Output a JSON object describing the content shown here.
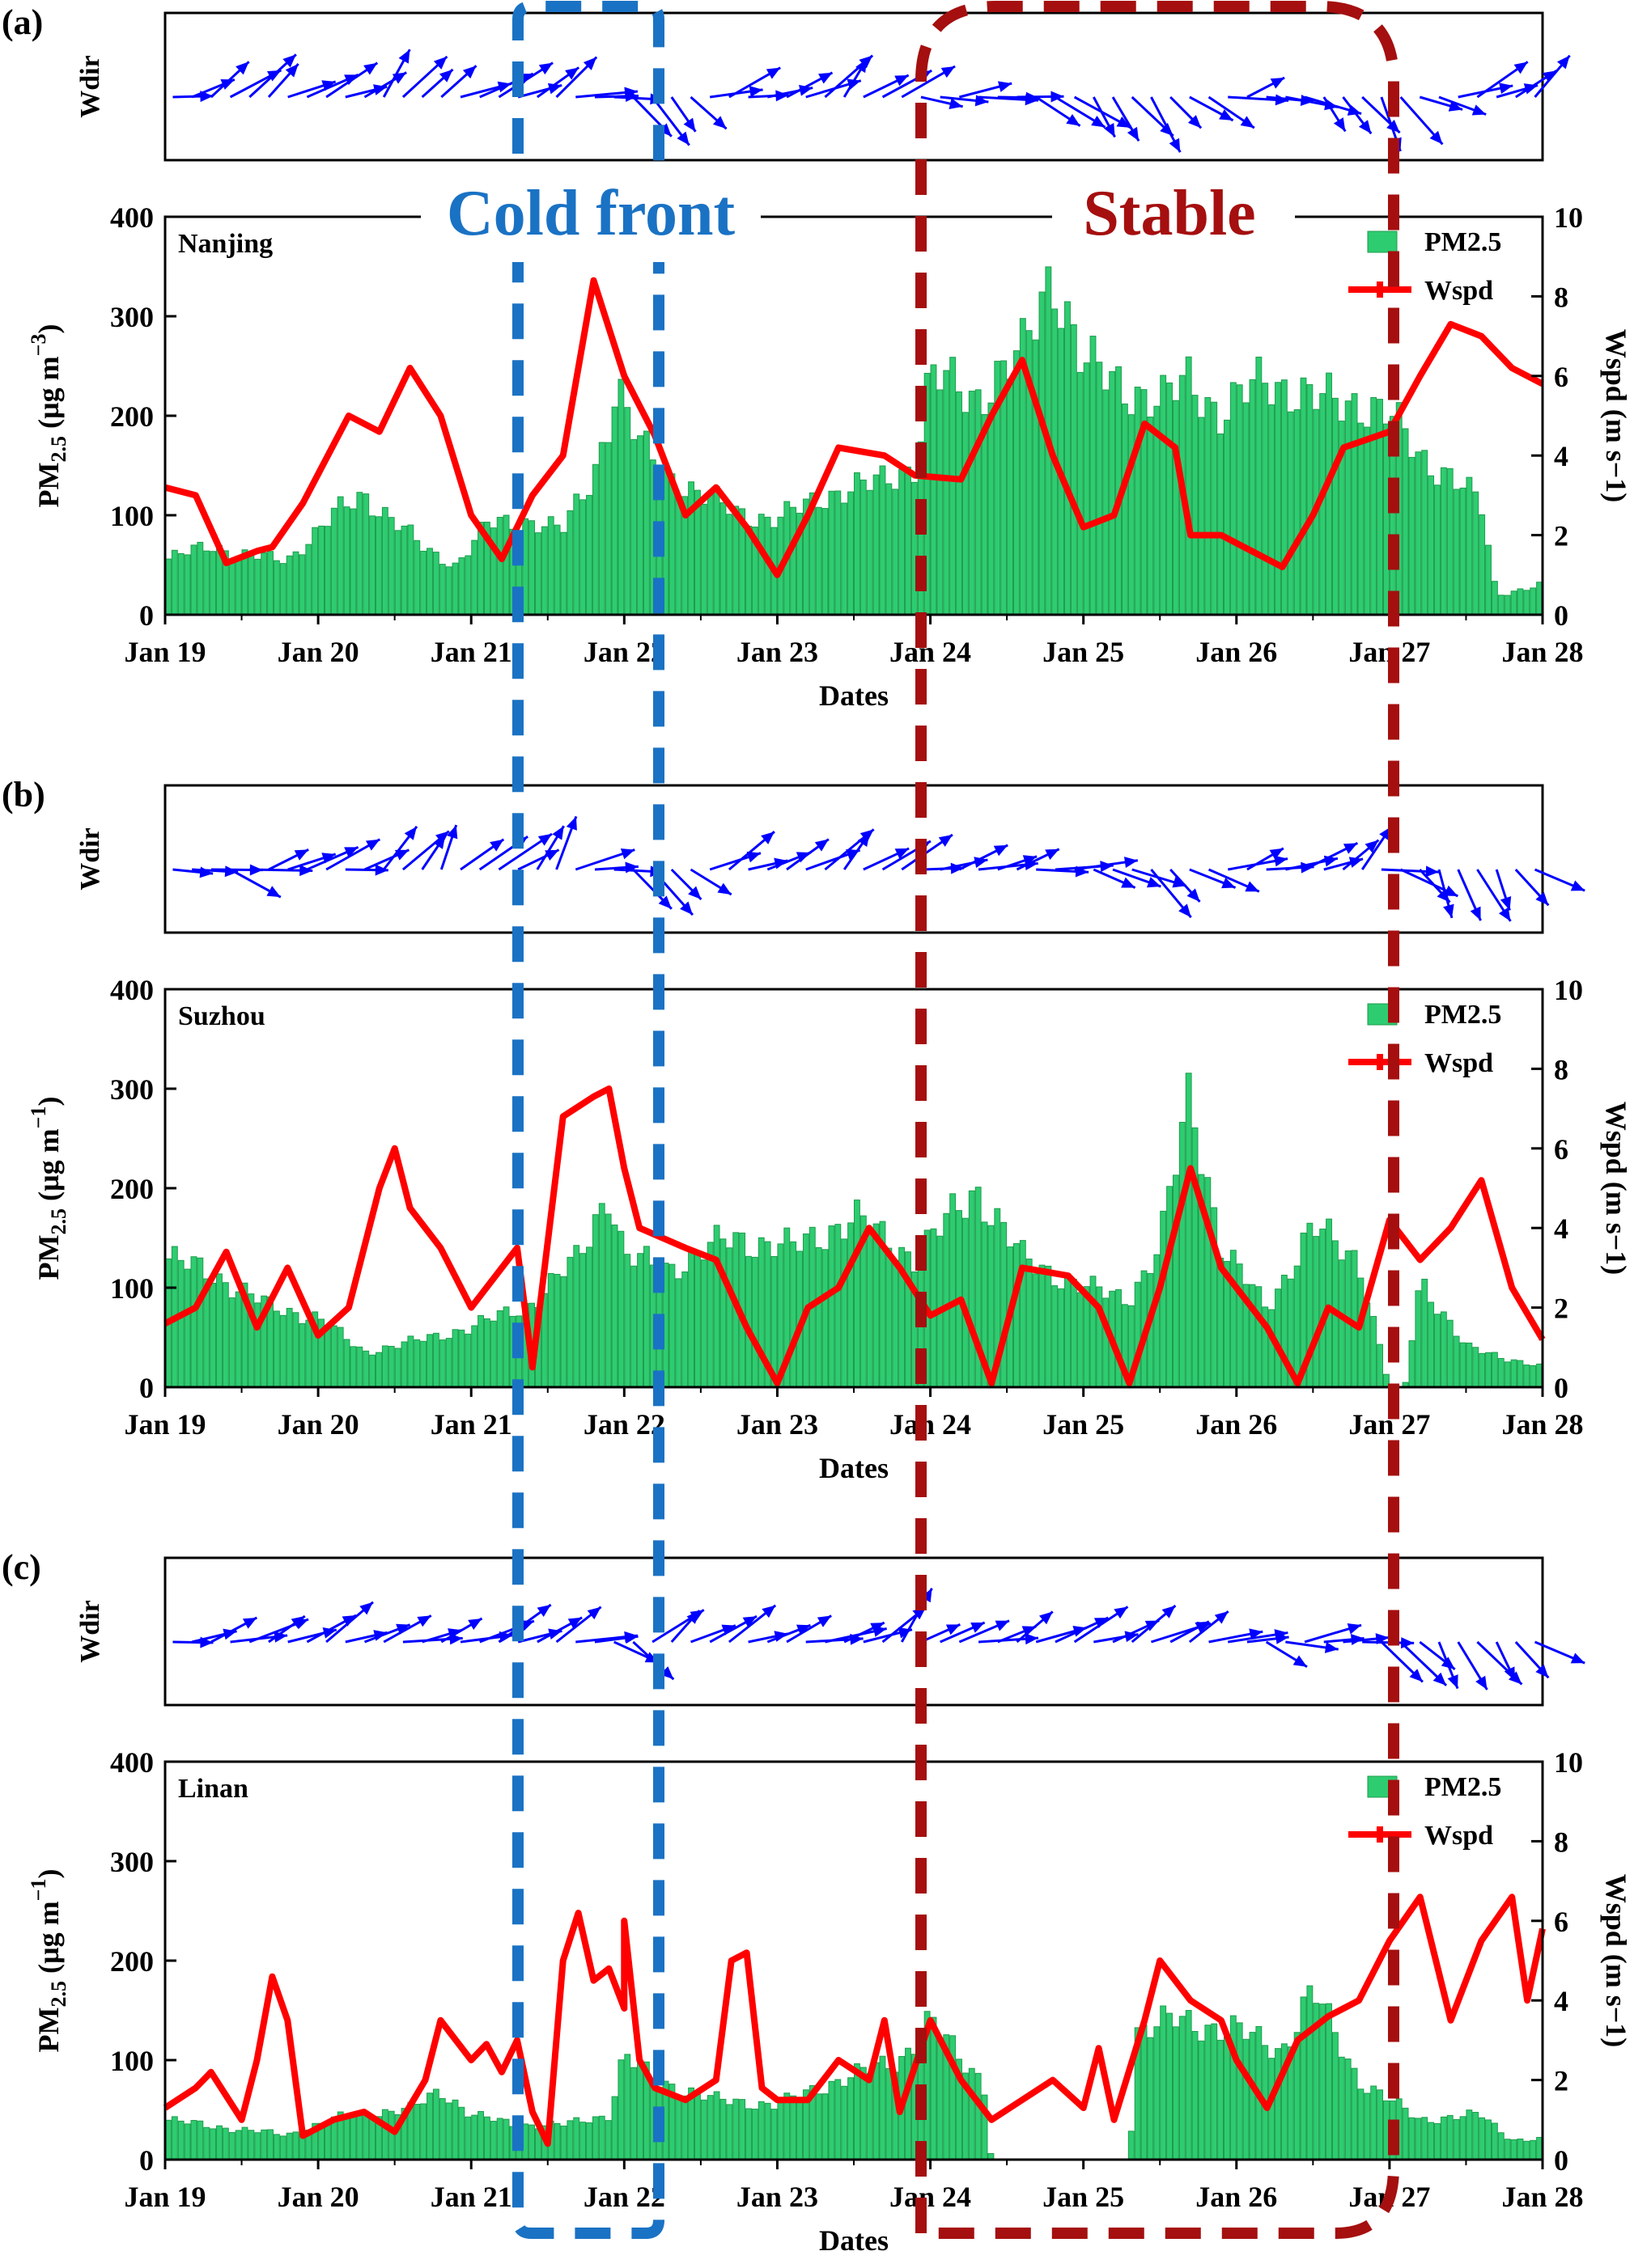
{
  "figure": {
    "overlay_labels": {
      "cold_front": "Cold front",
      "stable": "Stable"
    },
    "colors": {
      "pm25_bar": "#2ecc71",
      "pm25_bar_edge": "#1e9c4c",
      "wspd_line": "#ff0000",
      "wind_arrow": "#0000ff",
      "cold_front_box": "#1a72c4",
      "stable_box": "#a50f0f"
    }
  },
  "chart_data": [
    {
      "panel_label": "(a)",
      "city": "Nanjing",
      "type": "bar",
      "wdir_label": "Wdir",
      "xlabel": "Dates",
      "ylabel": "PM2.5 (µg m−3)",
      "ylabel_main": "PM",
      "ylabel_sub": "2.5",
      "ylabel_unit": " (µg m",
      "ylabel_exp": "−3",
      "ylabel_close": ")",
      "y2label": "Wspd (m s−1)",
      "ylim": [
        0,
        400
      ],
      "y2lim": [
        0,
        10
      ],
      "yticks": [
        "0",
        "100",
        "200",
        "300",
        "400"
      ],
      "y2ticks": [
        "0",
        "2",
        "4",
        "6",
        "8",
        "10"
      ],
      "xticks": [
        "Jan 19",
        "Jan 20",
        "Jan 21",
        "Jan 22",
        "Jan 23",
        "Jan 24",
        "Jan 25",
        "Jan 26",
        "Jan 27",
        "Jan 28"
      ],
      "legend": [
        "PM2.5",
        "Wspd"
      ],
      "pm25_knots": [
        [
          0,
          55
        ],
        [
          0.3,
          70
        ],
        [
          0.5,
          60
        ],
        [
          0.8,
          55
        ],
        [
          1.1,
          100
        ],
        [
          1.3,
          120
        ],
        [
          1.5,
          95
        ],
        [
          1.7,
          65
        ],
        [
          1.9,
          50
        ],
        [
          2.1,
          90
        ],
        [
          2.4,
          95
        ],
        [
          2.6,
          85
        ],
        [
          2.8,
          140
        ],
        [
          2.95,
          230
        ],
        [
          3.1,
          170
        ],
        [
          3.3,
          140
        ],
        [
          3.5,
          120
        ],
        [
          3.8,
          100
        ],
        [
          4.0,
          95
        ],
        [
          4.3,
          120
        ],
        [
          4.6,
          130
        ],
        [
          4.9,
          150
        ],
        [
          5.0,
          240
        ],
        [
          5.3,
          220
        ],
        [
          5.6,
          260
        ],
        [
          5.8,
          350
        ],
        [
          6.0,
          250
        ],
        [
          6.3,
          230
        ],
        [
          6.5,
          210
        ],
        [
          6.7,
          240
        ],
        [
          6.9,
          200
        ],
        [
          7.2,
          240
        ],
        [
          7.5,
          215
        ],
        [
          7.8,
          215
        ],
        [
          8.0,
          200
        ],
        [
          8.2,
          160
        ],
        [
          8.4,
          140
        ],
        [
          8.6,
          110
        ],
        [
          8.7,
          20
        ],
        [
          9.0,
          30
        ]
      ],
      "wspd_knots": [
        [
          0,
          3.2
        ],
        [
          0.2,
          3.0
        ],
        [
          0.4,
          1.3
        ],
        [
          0.6,
          1.6
        ],
        [
          0.7,
          1.7
        ],
        [
          0.9,
          2.8
        ],
        [
          1.2,
          5.0
        ],
        [
          1.4,
          4.6
        ],
        [
          1.6,
          6.2
        ],
        [
          1.8,
          5.0
        ],
        [
          2.0,
          2.5
        ],
        [
          2.2,
          1.4
        ],
        [
          2.4,
          3.0
        ],
        [
          2.6,
          4.0
        ],
        [
          2.8,
          8.4
        ],
        [
          3.0,
          6.0
        ],
        [
          3.2,
          4.5
        ],
        [
          3.4,
          2.5
        ],
        [
          3.6,
          3.2
        ],
        [
          3.8,
          2.2
        ],
        [
          4.0,
          1.0
        ],
        [
          4.2,
          2.5
        ],
        [
          4.4,
          4.2
        ],
        [
          4.7,
          4.0
        ],
        [
          4.9,
          3.5
        ],
        [
          5.2,
          3.4
        ],
        [
          5.4,
          5.0
        ],
        [
          5.6,
          6.4
        ],
        [
          5.8,
          4.0
        ],
        [
          6.0,
          2.2
        ],
        [
          6.2,
          2.5
        ],
        [
          6.4,
          4.8
        ],
        [
          6.6,
          4.2
        ],
        [
          6.7,
          2.0
        ],
        [
          6.9,
          2.0
        ],
        [
          7.1,
          1.6
        ],
        [
          7.3,
          1.2
        ],
        [
          7.5,
          2.5
        ],
        [
          7.7,
          4.2
        ],
        [
          8.0,
          4.6
        ],
        [
          8.2,
          6.0
        ],
        [
          8.4,
          7.3
        ],
        [
          8.6,
          7.0
        ],
        [
          8.8,
          6.2
        ],
        [
          9.0,
          5.8
        ]
      ],
      "wdir_knots": [
        [
          0,
          10
        ],
        [
          0.5,
          45
        ],
        [
          1.0,
          20
        ],
        [
          1.3,
          30
        ],
        [
          1.5,
          60
        ],
        [
          1.8,
          30
        ],
        [
          2.2,
          20
        ],
        [
          2.5,
          40
        ],
        [
          2.9,
          -10
        ],
        [
          3.1,
          -40
        ],
        [
          3.3,
          -70
        ],
        [
          3.6,
          20
        ],
        [
          4.0,
          10
        ],
        [
          4.4,
          50
        ],
        [
          4.8,
          20
        ],
        [
          5.0,
          -10
        ],
        [
          5.3,
          10
        ],
        [
          5.8,
          -30
        ],
        [
          6.2,
          -60
        ],
        [
          6.7,
          -40
        ],
        [
          7.1,
          20
        ],
        [
          7.6,
          -50
        ],
        [
          8.0,
          -60
        ],
        [
          8.5,
          20
        ],
        [
          9.0,
          40
        ]
      ]
    },
    {
      "panel_label": "(b)",
      "city": "Suzhou",
      "type": "bar",
      "wdir_label": "Wdir",
      "xlabel": "Dates",
      "ylabel": "PM2.5 (µg m−1)",
      "ylabel_main": "PM",
      "ylabel_sub": "2.5",
      "ylabel_unit": " (µg m",
      "ylabel_exp": "−1",
      "ylabel_close": ")",
      "y2label": "Wspd (m s−1)",
      "ylim": [
        0,
        400
      ],
      "y2lim": [
        0,
        10
      ],
      "yticks": [
        "0",
        "100",
        "200",
        "300",
        "400"
      ],
      "y2ticks": [
        "0",
        "2",
        "4",
        "6",
        "8",
        "10"
      ],
      "xticks": [
        "Jan 19",
        "Jan 20",
        "Jan 21",
        "Jan 22",
        "Jan 23",
        "Jan 24",
        "Jan 25",
        "Jan 26",
        "Jan 27",
        "Jan 28"
      ],
      "legend": [
        "PM2.5",
        "Wspd"
      ],
      "pm25_knots": [
        [
          0,
          130
        ],
        [
          0.3,
          115
        ],
        [
          0.7,
          80
        ],
        [
          1.0,
          70
        ],
        [
          1.3,
          35
        ],
        [
          1.6,
          45
        ],
        [
          2.0,
          60
        ],
        [
          2.4,
          85
        ],
        [
          2.7,
          130
        ],
        [
          2.9,
          200
        ],
        [
          3.0,
          130
        ],
        [
          3.3,
          120
        ],
        [
          3.7,
          150
        ],
        [
          4.1,
          140
        ],
        [
          4.5,
          170
        ],
        [
          4.9,
          130
        ],
        [
          5.3,
          200
        ],
        [
          5.6,
          130
        ],
        [
          6.0,
          100
        ],
        [
          6.3,
          90
        ],
        [
          6.5,
          140
        ],
        [
          6.7,
          300
        ],
        [
          6.9,
          140
        ],
        [
          7.2,
          80
        ],
        [
          7.5,
          160
        ],
        [
          7.8,
          130
        ],
        [
          8.0,
          0
        ],
        [
          8.1,
          0
        ],
        [
          8.2,
          110
        ],
        [
          8.5,
          40
        ],
        [
          9.0,
          20
        ]
      ],
      "wspd_knots": [
        [
          0,
          1.6
        ],
        [
          0.2,
          2.0
        ],
        [
          0.4,
          3.4
        ],
        [
          0.6,
          1.5
        ],
        [
          0.8,
          3.0
        ],
        [
          1.0,
          1.3
        ],
        [
          1.2,
          2.0
        ],
        [
          1.4,
          5.0
        ],
        [
          1.5,
          6.0
        ],
        [
          1.6,
          4.5
        ],
        [
          1.8,
          3.5
        ],
        [
          2.0,
          2.0
        ],
        [
          2.3,
          3.5
        ],
        [
          2.4,
          0.5
        ],
        [
          2.6,
          6.8
        ],
        [
          2.8,
          7.3
        ],
        [
          2.9,
          7.5
        ],
        [
          3.0,
          5.5
        ],
        [
          3.1,
          4.0
        ],
        [
          3.4,
          3.5
        ],
        [
          3.6,
          3.2
        ],
        [
          3.8,
          1.5
        ],
        [
          4.0,
          0.1
        ],
        [
          4.2,
          2.0
        ],
        [
          4.4,
          2.5
        ],
        [
          4.6,
          4.0
        ],
        [
          4.8,
          3.0
        ],
        [
          5.0,
          1.8
        ],
        [
          5.2,
          2.2
        ],
        [
          5.4,
          0.1
        ],
        [
          5.6,
          3.0
        ],
        [
          5.9,
          2.8
        ],
        [
          6.1,
          2.0
        ],
        [
          6.3,
          0.1
        ],
        [
          6.5,
          2.5
        ],
        [
          6.7,
          5.5
        ],
        [
          6.9,
          3.0
        ],
        [
          7.2,
          1.5
        ],
        [
          7.4,
          0.1
        ],
        [
          7.6,
          2.0
        ],
        [
          7.8,
          1.5
        ],
        [
          8.0,
          4.2
        ],
        [
          8.2,
          3.2
        ],
        [
          8.4,
          4.0
        ],
        [
          8.6,
          5.2
        ],
        [
          8.8,
          2.5
        ],
        [
          9.0,
          1.2
        ]
      ],
      "wdir_knots": [
        [
          0,
          10
        ],
        [
          0.4,
          -20
        ],
        [
          0.8,
          30
        ],
        [
          1.2,
          10
        ],
        [
          1.5,
          50
        ],
        [
          1.8,
          60
        ],
        [
          2.2,
          20
        ],
        [
          2.5,
          70
        ],
        [
          2.8,
          5
        ],
        [
          3.1,
          -40
        ],
        [
          3.3,
          -60
        ],
        [
          3.6,
          30
        ],
        [
          4.0,
          20
        ],
        [
          4.4,
          45
        ],
        [
          4.7,
          30
        ],
        [
          5.0,
          10
        ],
        [
          5.4,
          20
        ],
        [
          5.8,
          5
        ],
        [
          6.2,
          -20
        ],
        [
          6.6,
          -50
        ],
        [
          7.0,
          20
        ],
        [
          7.4,
          10
        ],
        [
          7.8,
          50
        ],
        [
          8.2,
          -60
        ],
        [
          8.6,
          -70
        ],
        [
          9.0,
          -30
        ]
      ]
    },
    {
      "panel_label": "(c)",
      "city": "Linan",
      "type": "bar",
      "wdir_label": "Wdir",
      "xlabel": "Dates",
      "ylabel": "PM2.5 (µg m−1)",
      "ylabel_main": "PM",
      "ylabel_sub": "2.5",
      "ylabel_unit": " (µg m",
      "ylabel_exp": "−1",
      "ylabel_close": ")",
      "y2label": "Wspd (m s−1)",
      "ylim": [
        0,
        400
      ],
      "y2lim": [
        0,
        10
      ],
      "yticks": [
        "0",
        "100",
        "200",
        "300",
        "400"
      ],
      "y2ticks": [
        "0",
        "2",
        "4",
        "6",
        "8",
        "10"
      ],
      "xticks": [
        "Jan 19",
        "Jan 20",
        "Jan 21",
        "Jan 22",
        "Jan 23",
        "Jan 24",
        "Jan 25",
        "Jan 26",
        "Jan 27",
        "Jan 28"
      ],
      "legend": [
        "PM2.5",
        "Wspd"
      ],
      "pm25_knots": [
        [
          0,
          40
        ],
        [
          0.5,
          30
        ],
        [
          0.8,
          25
        ],
        [
          1.2,
          45
        ],
        [
          1.6,
          50
        ],
        [
          1.8,
          70
        ],
        [
          2.0,
          45
        ],
        [
          2.3,
          35
        ],
        [
          2.6,
          35
        ],
        [
          2.9,
          45
        ],
        [
          3.0,
          105
        ],
        [
          3.2,
          80
        ],
        [
          3.6,
          60
        ],
        [
          4.0,
          55
        ],
        [
          4.4,
          80
        ],
        [
          4.8,
          100
        ],
        [
          5.0,
          140
        ],
        [
          5.2,
          100
        ],
        [
          5.35,
          80
        ],
        [
          5.4,
          0
        ],
        [
          6.3,
          0
        ],
        [
          6.35,
          130
        ],
        [
          6.6,
          140
        ],
        [
          7.0,
          130
        ],
        [
          7.3,
          110
        ],
        [
          7.5,
          170
        ],
        [
          7.8,
          80
        ],
        [
          8.0,
          60
        ],
        [
          8.2,
          40
        ],
        [
          8.6,
          45
        ],
        [
          8.8,
          20
        ],
        [
          9.0,
          20
        ]
      ],
      "wspd_knots": [
        [
          0,
          1.3
        ],
        [
          0.2,
          1.8
        ],
        [
          0.3,
          2.2
        ],
        [
          0.5,
          1.0
        ],
        [
          0.6,
          2.5
        ],
        [
          0.7,
          4.6
        ],
        [
          0.8,
          3.5
        ],
        [
          0.9,
          0.6
        ],
        [
          1.1,
          1.0
        ],
        [
          1.3,
          1.2
        ],
        [
          1.5,
          0.7
        ],
        [
          1.7,
          2.0
        ],
        [
          1.8,
          3.5
        ],
        [
          2.0,
          2.5
        ],
        [
          2.1,
          2.9
        ],
        [
          2.2,
          2.2
        ],
        [
          2.3,
          3.0
        ],
        [
          2.4,
          1.2
        ],
        [
          2.5,
          0.4
        ],
        [
          2.6,
          5.0
        ],
        [
          2.7,
          6.2
        ],
        [
          2.8,
          4.5
        ],
        [
          2.9,
          4.8
        ],
        [
          3.0,
          3.8
        ],
        [
          3.0,
          6.0
        ],
        [
          3.1,
          2.5
        ],
        [
          3.2,
          1.8
        ],
        [
          3.4,
          1.5
        ],
        [
          3.6,
          2.0
        ],
        [
          3.7,
          5.0
        ],
        [
          3.8,
          5.2
        ],
        [
          3.9,
          1.8
        ],
        [
          4.0,
          1.5
        ],
        [
          4.2,
          1.5
        ],
        [
          4.4,
          2.5
        ],
        [
          4.6,
          2.0
        ],
        [
          4.7,
          3.5
        ],
        [
          4.8,
          1.2
        ],
        [
          5.0,
          3.5
        ],
        [
          5.2,
          2.0
        ],
        [
          5.4,
          1.0
        ],
        [
          5.6,
          1.5
        ],
        [
          5.8,
          2.0
        ],
        [
          6.0,
          1.3
        ],
        [
          6.1,
          2.8
        ],
        [
          6.2,
          1.0
        ],
        [
          6.4,
          3.5
        ],
        [
          6.5,
          5.0
        ],
        [
          6.7,
          4.0
        ],
        [
          6.9,
          3.5
        ],
        [
          7.0,
          2.5
        ],
        [
          7.2,
          1.3
        ],
        [
          7.4,
          3.0
        ],
        [
          7.6,
          3.6
        ],
        [
          7.8,
          4.0
        ],
        [
          8.0,
          5.5
        ],
        [
          8.2,
          6.6
        ],
        [
          8.4,
          3.5
        ],
        [
          8.6,
          5.5
        ],
        [
          8.8,
          6.6
        ],
        [
          8.9,
          4.0
        ],
        [
          9.0,
          5.8
        ]
      ],
      "wdir_knots": [
        [
          0,
          10
        ],
        [
          0.5,
          20
        ],
        [
          1.0,
          30
        ],
        [
          1.5,
          15
        ],
        [
          2.0,
          20
        ],
        [
          2.5,
          30
        ],
        [
          2.8,
          10
        ],
        [
          3.0,
          -60
        ],
        [
          3.2,
          40
        ],
        [
          3.5,
          30
        ],
        [
          4.0,
          20
        ],
        [
          4.4,
          10
        ],
        [
          4.8,
          50
        ],
        [
          5.2,
          10
        ],
        [
          5.6,
          30
        ],
        [
          6.0,
          20
        ],
        [
          6.4,
          30
        ],
        [
          6.8,
          25
        ],
        [
          7.2,
          -20
        ],
        [
          7.6,
          20
        ],
        [
          8.0,
          -40
        ],
        [
          8.4,
          -60
        ],
        [
          8.8,
          -50
        ],
        [
          9.0,
          -30
        ]
      ]
    }
  ]
}
